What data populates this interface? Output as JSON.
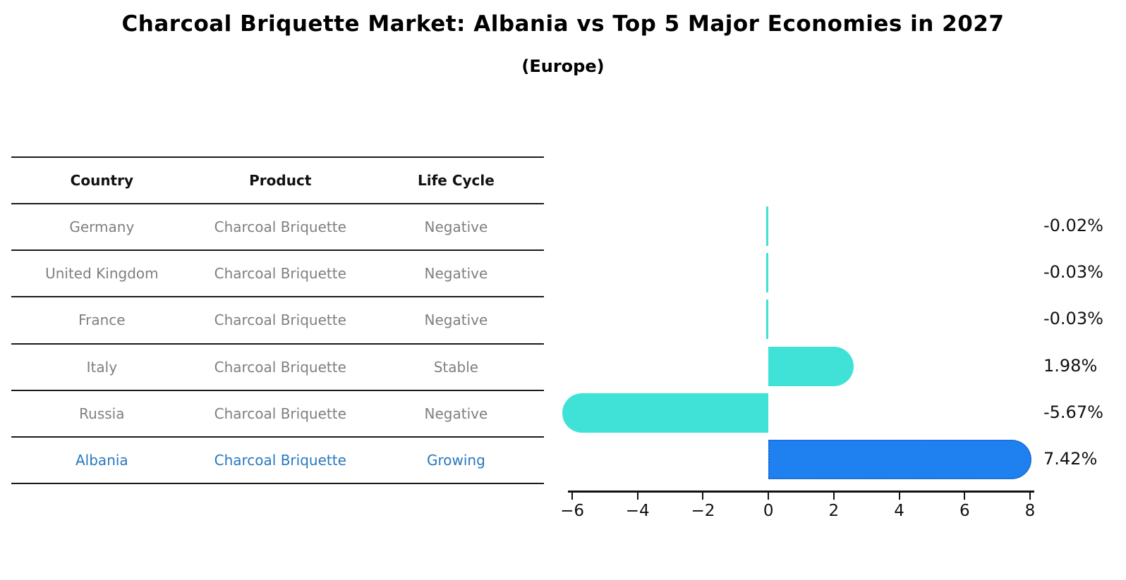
{
  "title": "Charcoal Briquette Market: Albania vs Top 5 Major Economies in 2027",
  "subtitle": "(Europe)",
  "table": {
    "columns": [
      "Country",
      "Product",
      "Life Cycle"
    ],
    "rows": [
      {
        "country": "Germany",
        "product": "Charcoal Briquette",
        "life_cycle": "Negative",
        "highlighted": false
      },
      {
        "country": "United Kingdom",
        "product": "Charcoal Briquette",
        "life_cycle": "Negative",
        "highlighted": false
      },
      {
        "country": "France",
        "product": "Charcoal Briquette",
        "life_cycle": "Negative",
        "highlighted": false
      },
      {
        "country": "Italy",
        "product": "Charcoal Briquette",
        "life_cycle": "Stable",
        "highlighted": false
      },
      {
        "country": "Russia",
        "product": "Charcoal Briquette",
        "life_cycle": "Negative",
        "highlighted": false
      },
      {
        "country": "Albania",
        "product": "Charcoal Briquette",
        "life_cycle": "Growing",
        "highlighted": true
      }
    ]
  },
  "chart_data": {
    "type": "bar",
    "orientation": "horizontal",
    "title": "Charcoal Briquette Market: Albania vs Top 5 Major Economies in 2027 (Europe)",
    "categories": [
      "Germany",
      "United Kingdom",
      "France",
      "Italy",
      "Russia",
      "Albania"
    ],
    "values": [
      -0.02,
      -0.03,
      -0.03,
      1.98,
      -5.67,
      7.42
    ],
    "value_labels": [
      "-0.02%",
      "-0.03%",
      "-0.03%",
      "1.98%",
      "-5.67%",
      "7.42%"
    ],
    "unit": "percent",
    "xlim": [
      -6.13,
      8.13
    ],
    "x_ticks": [
      {
        "value": -6,
        "label": "−6"
      },
      {
        "value": -4,
        "label": "−4"
      },
      {
        "value": -2,
        "label": "−2"
      },
      {
        "value": 0,
        "label": "0"
      },
      {
        "value": 2,
        "label": "2"
      },
      {
        "value": 4,
        "label": "4"
      },
      {
        "value": 6,
        "label": "6"
      },
      {
        "value": 8,
        "label": "8"
      }
    ],
    "grid": false,
    "legend": false,
    "highlight_index": 5,
    "colors": {
      "bar_default": "#40e2d8",
      "bar_highlight": "#1f80f0",
      "bar_highlight_border": "#1a66cc",
      "highlight_text": "#2878be",
      "axis": "#111111"
    }
  }
}
